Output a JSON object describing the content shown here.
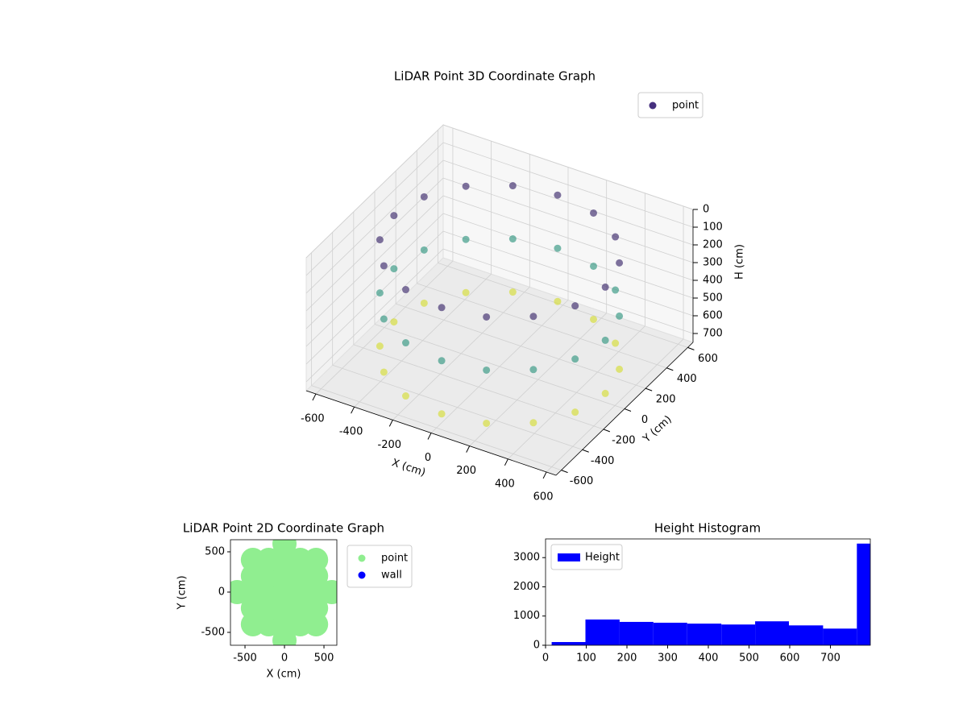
{
  "chart_data": [
    {
      "type": "scatter3d",
      "title": "LiDAR Point 3D Coordinate Graph",
      "x_label": "X (cm)",
      "y_label": "Y (cm)",
      "z_label": "H (cm)",
      "series": [
        {
          "name": "point",
          "color": "#46307e",
          "x": [
            550,
            508,
            389,
            210,
            0,
            -210,
            -389,
            -508,
            -550,
            -508,
            -389,
            -210,
            0,
            210,
            389,
            508,
            550,
            508,
            389,
            210,
            0,
            -210,
            -389,
            -508,
            -550,
            -508,
            -389,
            -210,
            0,
            210,
            389,
            508,
            550,
            508,
            389,
            210,
            0,
            -210,
            -389,
            -508,
            -550,
            -508,
            -389,
            -210,
            0,
            210,
            389,
            508
          ],
          "y": [
            0,
            210,
            389,
            508,
            550,
            508,
            389,
            210,
            0,
            -210,
            -389,
            -508,
            -550,
            -508,
            -389,
            -210,
            0,
            210,
            389,
            508,
            550,
            508,
            389,
            210,
            0,
            -210,
            -389,
            -508,
            -550,
            -508,
            -389,
            -210,
            0,
            210,
            389,
            508,
            550,
            508,
            389,
            210,
            0,
            -210,
            -389,
            -508,
            -550,
            -508,
            -389,
            -210
          ],
          "z": [
            700,
            700,
            700,
            700,
            700,
            700,
            700,
            700,
            700,
            700,
            700,
            700,
            700,
            700,
            700,
            700,
            400,
            400,
            400,
            400,
            400,
            400,
            400,
            400,
            400,
            400,
            400,
            400,
            400,
            400,
            400,
            400,
            100,
            100,
            100,
            100,
            100,
            100,
            100,
            100,
            100,
            100,
            100,
            100,
            100,
            100,
            100,
            100
          ]
        }
      ],
      "colormap": [
        "#440154",
        "#31688e",
        "#35b779",
        "#fde725"
      ],
      "xlim": [
        -650,
        650
      ],
      "ylim": [
        -650,
        650
      ],
      "zlim": [
        750,
        0
      ],
      "xticks": [
        -600,
        -400,
        -200,
        0,
        200,
        400,
        600
      ],
      "yticks": [
        -600,
        -400,
        -200,
        0,
        200,
        400,
        600
      ],
      "zticks": [
        0,
        100,
        200,
        300,
        400,
        500,
        600,
        700
      ],
      "grid": true,
      "legend": "upper right"
    },
    {
      "type": "scatter",
      "title": "LiDAR Point 2D Coordinate Graph",
      "x_label": "X (cm)",
      "y_label": "Y (cm)",
      "series": [
        {
          "name": "point",
          "color": "#90ee90",
          "x": [
            -600,
            -400,
            -400,
            -400,
            -400,
            -400,
            -200,
            -200,
            -200,
            -200,
            -200,
            0,
            0,
            0,
            0,
            0,
            0,
            0,
            200,
            200,
            200,
            200,
            200,
            400,
            400,
            400,
            400,
            400,
            600
          ],
          "y": [
            0,
            -400,
            -200,
            0,
            200,
            400,
            -400,
            -200,
            0,
            200,
            400,
            -600,
            -400,
            -200,
            0,
            200,
            400,
            600,
            -400,
            -200,
            0,
            200,
            400,
            -400,
            -200,
            0,
            200,
            400,
            0
          ]
        },
        {
          "name": "wall",
          "color": "#0000ff",
          "x": [],
          "y": []
        }
      ],
      "xlim": [
        -684,
        663
      ],
      "ylim": [
        -660,
        650
      ],
      "xticks": [
        -500,
        0,
        500
      ],
      "yticks": [
        -500,
        0,
        500
      ],
      "legend": "right"
    },
    {
      "type": "histogram",
      "title": "Height Histogram",
      "series": [
        {
          "name": "Height",
          "color": "#0000ff",
          "values": [
            110,
            880,
            800,
            770,
            740,
            710,
            820,
            680,
            570,
            3480
          ]
        }
      ],
      "bins": [
        15,
        98,
        182,
        265,
        348,
        432,
        515,
        598,
        682,
        765,
        848
      ],
      "xlim": [
        0,
        798
      ],
      "ylim": [
        0,
        3640
      ],
      "xticks": [
        0,
        100,
        200,
        300,
        400,
        500,
        600,
        700
      ],
      "yticks": [
        0,
        1000,
        2000,
        3000
      ],
      "legend": "upper left"
    }
  ]
}
